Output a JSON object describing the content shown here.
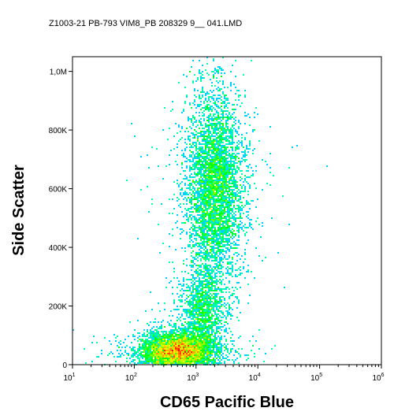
{
  "chart_data": {
    "type": "scatter",
    "title": "Z1003-21 PB-793 VIM8_PB 208329 9__ 041.LMD",
    "xlabel": "CD65 Pacific Blue",
    "ylabel": "Side Scatter",
    "x_scale": "log",
    "y_scale": "linear",
    "xlim": [
      10,
      1000000
    ],
    "ylim": [
      0,
      1050000
    ],
    "x_ticks": [
      {
        "base": "10",
        "exp": "1",
        "value": 10
      },
      {
        "base": "10",
        "exp": "2",
        "value": 100
      },
      {
        "base": "10",
        "exp": "3",
        "value": 1000
      },
      {
        "base": "10",
        "exp": "4",
        "value": 10000
      },
      {
        "base": "10",
        "exp": "5",
        "value": 100000
      },
      {
        "base": "10",
        "exp": "6",
        "value": 1000000
      }
    ],
    "y_ticks": [
      {
        "label": "0",
        "value": 0
      },
      {
        "label": "200K",
        "value": 200000
      },
      {
        "label": "400K",
        "value": 400000
      },
      {
        "label": "600K",
        "value": 600000
      },
      {
        "label": "800K",
        "value": 800000
      },
      {
        "label": "1,0M",
        "value": 1000000
      }
    ],
    "grid": false,
    "populations": [
      {
        "x_center": 500,
        "y_center": 45000,
        "x_spread_decades": 0.28,
        "y_spread": 30000,
        "weight": 0.45
      },
      {
        "x_center": 1300,
        "y_center": 180000,
        "x_spread_decades": 0.18,
        "y_spread": 70000,
        "weight": 0.12
      },
      {
        "x_center": 2000,
        "y_center": 600000,
        "x_spread_decades": 0.22,
        "y_spread": 160000,
        "weight": 0.43
      }
    ],
    "colors": {
      "low": "#0000ff",
      "mid": "#00ffff",
      "midhigh": "#00ff00",
      "high": "#ffff00",
      "peak": "#ff0000"
    }
  }
}
